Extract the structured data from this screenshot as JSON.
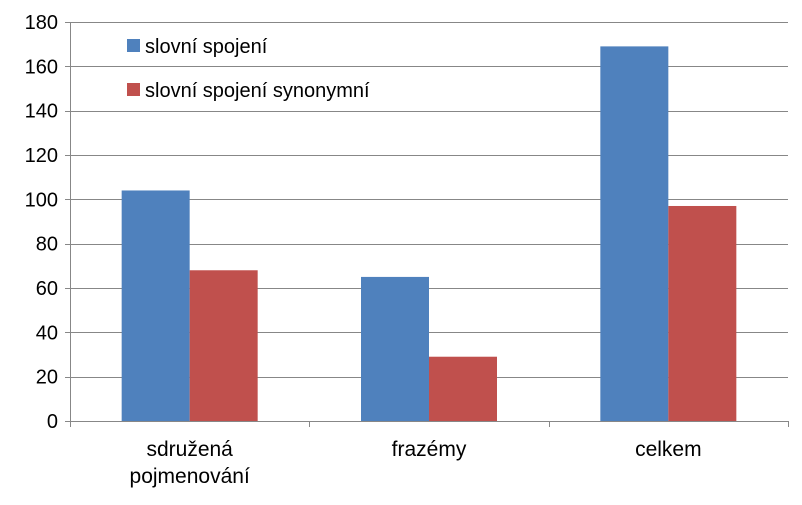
{
  "chart_data": {
    "type": "bar",
    "categories": [
      [
        "sdružená",
        "pojmenování"
      ],
      [
        "frazémy"
      ],
      [
        "celkem"
      ]
    ],
    "series": [
      {
        "name": "slovní spojení",
        "color": "#4f81bd",
        "values": [
          104,
          65,
          169
        ]
      },
      {
        "name": "slovní spojení synonymní",
        "color": "#c0504d",
        "values": [
          68,
          29,
          97
        ]
      }
    ],
    "ylim": [
      0,
      180
    ],
    "yticks": [
      0,
      20,
      40,
      60,
      80,
      100,
      120,
      140,
      160,
      180
    ],
    "grid": true,
    "gridColor": "#878787",
    "axisColor": "#878787",
    "legend": "top-left inside plot"
  }
}
